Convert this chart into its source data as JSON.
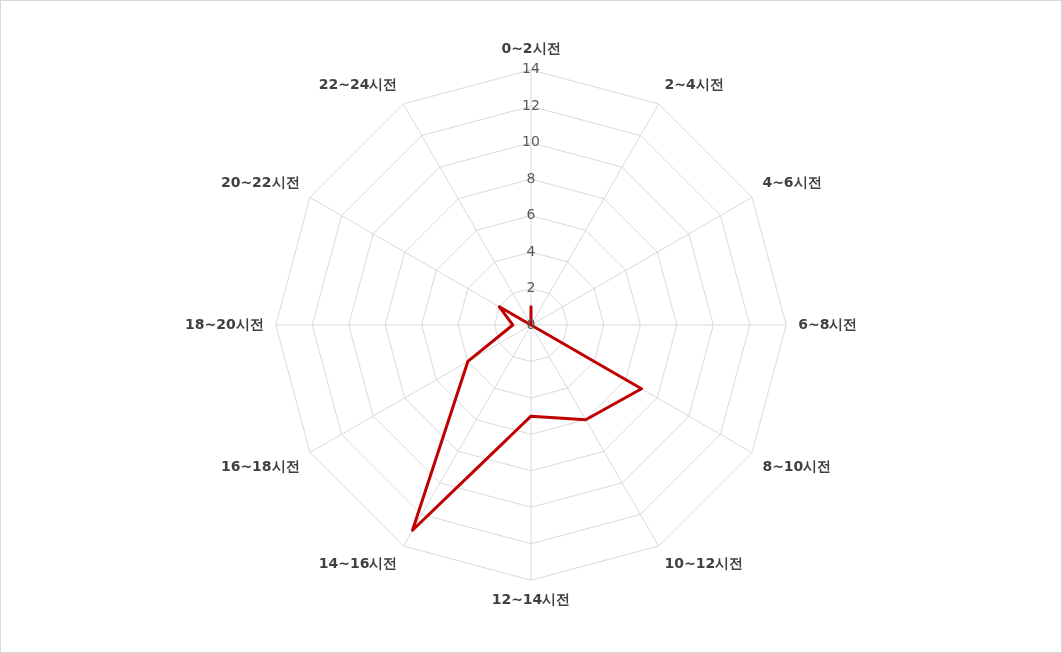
{
  "chart_data": {
    "type": "radar",
    "categories": [
      "0~2시전",
      "2~4시전",
      "4~6시전",
      "6~8시전",
      "8~10시전",
      "10~12시전",
      "12~14시전",
      "14~16시전",
      "16~18시전",
      "18~20시전",
      "20~22시전",
      "22~24시전"
    ],
    "series": [
      {
        "color": "#c00000",
        "values": [
          1,
          0,
          0,
          0,
          7,
          6,
          5,
          13,
          4,
          1,
          2,
          0
        ]
      }
    ],
    "ylim": [
      0,
      14
    ],
    "yticks": [
      0,
      2,
      4,
      6,
      8,
      10,
      12,
      14
    ],
    "grid": true,
    "legend": false,
    "marker": "none"
  }
}
